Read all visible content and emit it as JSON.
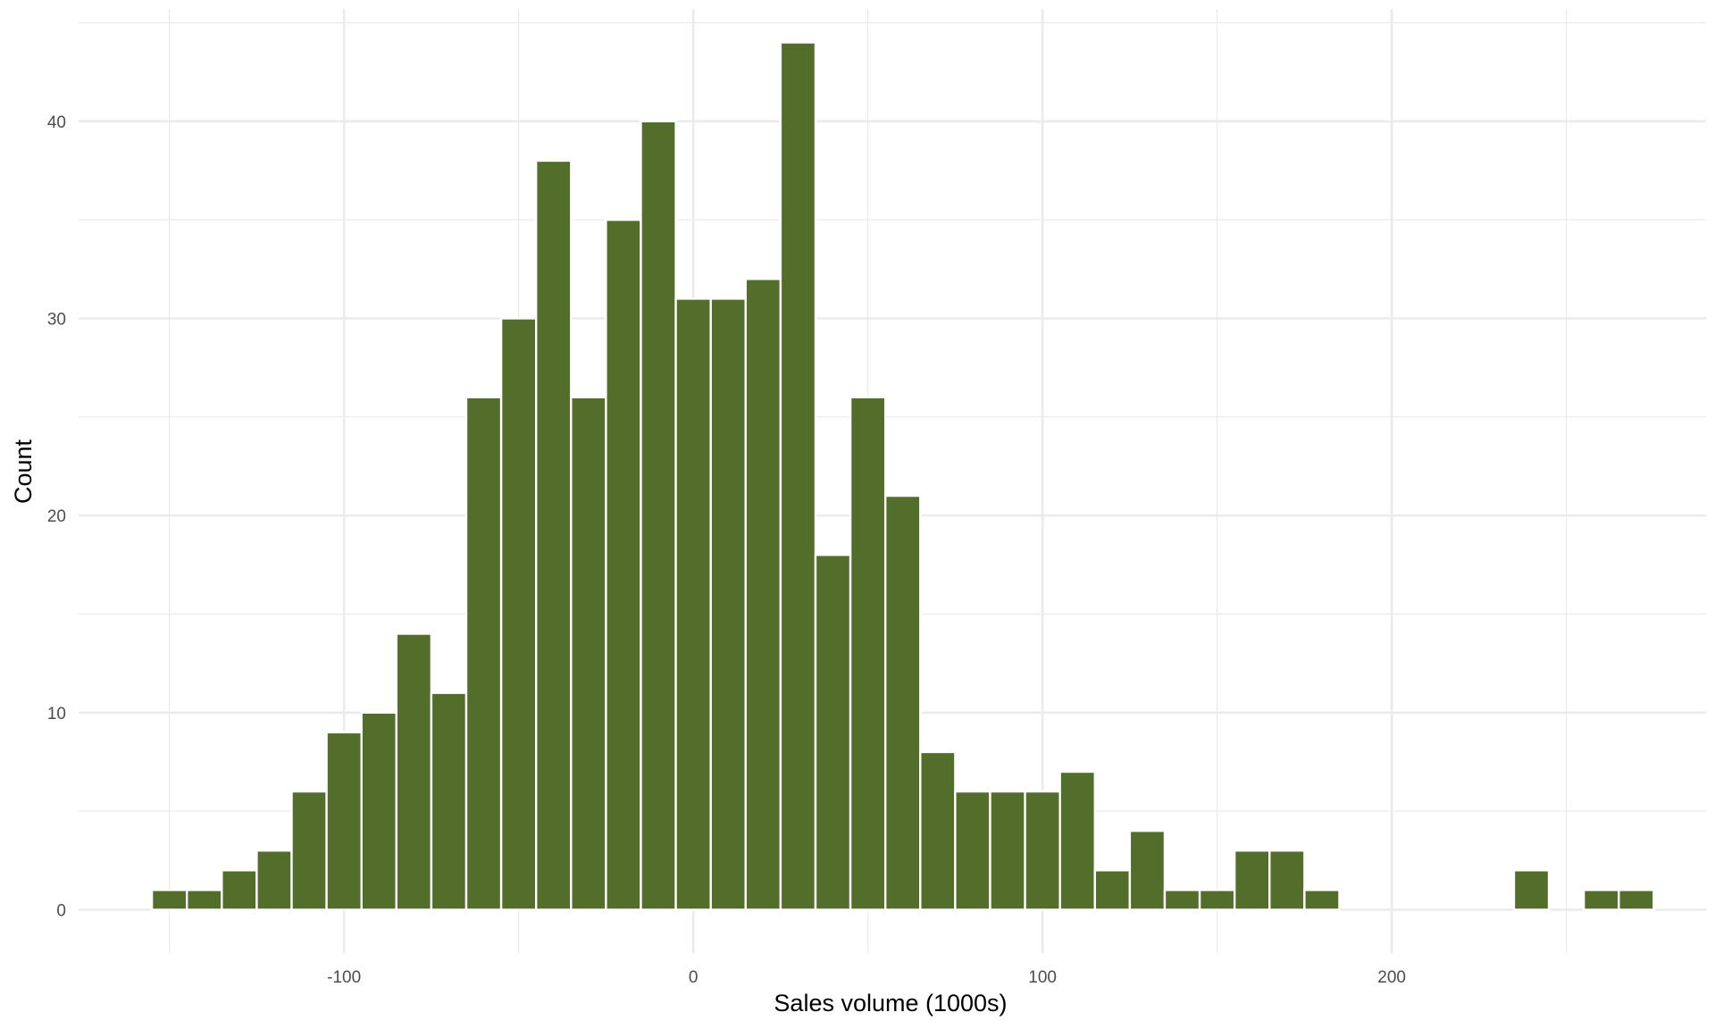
{
  "chart_data": {
    "type": "bar",
    "subtype": "histogram",
    "title": "",
    "xlabel": "Sales volume (1000s)",
    "ylabel": "Count",
    "bin_width": 10,
    "xlim": [
      -176,
      290
    ],
    "ylim": [
      -2.2,
      45.7
    ],
    "x_ticks": [
      -100,
      0,
      100,
      200
    ],
    "x_tick_labels": [
      "-100",
      "0",
      "100",
      "200"
    ],
    "y_ticks": [
      0,
      10,
      20,
      30,
      40
    ],
    "y_tick_labels": [
      "0",
      "10",
      "20",
      "30",
      "40"
    ],
    "grid": true,
    "legend": "none",
    "colors": {
      "bar_fill": "#536d2a",
      "bar_outline": "#ffffff",
      "grid": "#ebebeb"
    },
    "bins": [
      {
        "x": -150,
        "count": 1
      },
      {
        "x": -140,
        "count": 1
      },
      {
        "x": -130,
        "count": 2
      },
      {
        "x": -120,
        "count": 3
      },
      {
        "x": -110,
        "count": 6
      },
      {
        "x": -100,
        "count": 9
      },
      {
        "x": -90,
        "count": 10
      },
      {
        "x": -80,
        "count": 14
      },
      {
        "x": -70,
        "count": 11
      },
      {
        "x": -60,
        "count": 26
      },
      {
        "x": -50,
        "count": 30
      },
      {
        "x": -40,
        "count": 38
      },
      {
        "x": -30,
        "count": 26
      },
      {
        "x": -20,
        "count": 35
      },
      {
        "x": -10,
        "count": 40
      },
      {
        "x": 0,
        "count": 31
      },
      {
        "x": 10,
        "count": 31
      },
      {
        "x": 20,
        "count": 32
      },
      {
        "x": 30,
        "count": 44
      },
      {
        "x": 40,
        "count": 18
      },
      {
        "x": 50,
        "count": 26
      },
      {
        "x": 60,
        "count": 21
      },
      {
        "x": 70,
        "count": 8
      },
      {
        "x": 80,
        "count": 6
      },
      {
        "x": 90,
        "count": 6
      },
      {
        "x": 100,
        "count": 6
      },
      {
        "x": 110,
        "count": 7
      },
      {
        "x": 120,
        "count": 2
      },
      {
        "x": 130,
        "count": 4
      },
      {
        "x": 140,
        "count": 1
      },
      {
        "x": 150,
        "count": 1
      },
      {
        "x": 160,
        "count": 3
      },
      {
        "x": 170,
        "count": 3
      },
      {
        "x": 180,
        "count": 1
      },
      {
        "x": 190,
        "count": 0
      },
      {
        "x": 200,
        "count": 0
      },
      {
        "x": 210,
        "count": 0
      },
      {
        "x": 220,
        "count": 0
      },
      {
        "x": 230,
        "count": 0
      },
      {
        "x": 240,
        "count": 2
      },
      {
        "x": 250,
        "count": 0
      },
      {
        "x": 260,
        "count": 1
      },
      {
        "x": 270,
        "count": 1
      }
    ]
  }
}
